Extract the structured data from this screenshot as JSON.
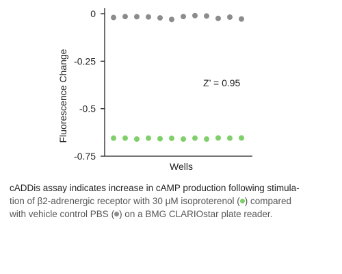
{
  "chart_data": {
    "type": "scatter",
    "xlabel": "Wells",
    "ylabel": "Fluorescence Change",
    "ylim": [
      -0.75,
      0
    ],
    "yticks": [
      0,
      -0.25,
      -0.5,
      -0.75
    ],
    "ytick_labels": [
      "0",
      "-0.25",
      "-0.5",
      "-0.75"
    ],
    "annotation": "Z’ = 0.95",
    "grid": false,
    "x": [
      1,
      2,
      3,
      4,
      5,
      6,
      7,
      8,
      9,
      10,
      11,
      12
    ],
    "series": [
      {
        "color": "#8c8c8c",
        "values": [
          -0.02,
          -0.015,
          -0.016,
          -0.017,
          -0.022,
          -0.03,
          -0.015,
          -0.01,
          -0.012,
          -0.025,
          -0.018,
          -0.028
        ]
      },
      {
        "color": "#7fcf6b",
        "values": [
          -0.655,
          -0.655,
          -0.66,
          -0.655,
          -0.658,
          -0.656,
          -0.66,
          -0.655,
          -0.66,
          -0.654,
          -0.655,
          -0.654
        ]
      }
    ]
  },
  "caption": {
    "line1": "cADDis assay indicates increase in cAMP production following stimula-",
    "line2_prefix": "tion of β2-adrenergic receptor with 30 μM isoproterenol (",
    "line2_suffix": ") compared",
    "line3_prefix": "with vehicle control  PBS (",
    "line3_suffix": ") on a BMG CLARIOstar plate reader."
  }
}
